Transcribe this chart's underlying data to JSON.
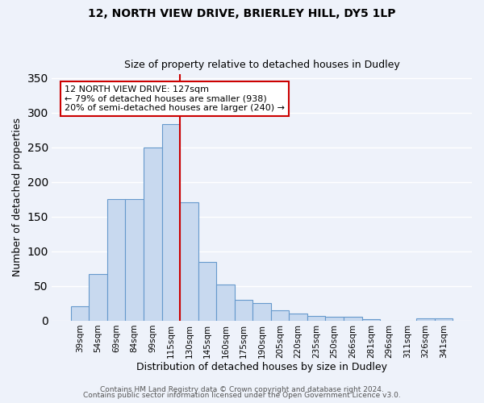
{
  "title": "12, NORTH VIEW DRIVE, BRIERLEY HILL, DY5 1LP",
  "subtitle": "Size of property relative to detached houses in Dudley",
  "xlabel": "Distribution of detached houses by size in Dudley",
  "ylabel": "Number of detached properties",
  "bar_color": "#c8d9ef",
  "bar_edge_color": "#6699cc",
  "background_color": "#eef2fa",
  "grid_color": "#ffffff",
  "categories": [
    "39sqm",
    "54sqm",
    "69sqm",
    "84sqm",
    "99sqm",
    "115sqm",
    "130sqm",
    "145sqm",
    "160sqm",
    "175sqm",
    "190sqm",
    "205sqm",
    "220sqm",
    "235sqm",
    "250sqm",
    "266sqm",
    "281sqm",
    "296sqm",
    "311sqm",
    "326sqm",
    "341sqm"
  ],
  "values": [
    20,
    67,
    175,
    175,
    250,
    283,
    170,
    85,
    52,
    30,
    25,
    15,
    10,
    7,
    5,
    5,
    2,
    0,
    0,
    3,
    3
  ],
  "vline_x_idx": 5.5,
  "vline_color": "#cc0000",
  "annotation_lines": [
    "12 NORTH VIEW DRIVE: 127sqm",
    "← 79% of detached houses are smaller (938)",
    "20% of semi-detached houses are larger (240) →"
  ],
  "annotation_box_facecolor": "#ffffff",
  "annotation_box_edgecolor": "#cc0000",
  "ylim": [
    0,
    355
  ],
  "yticks": [
    0,
    50,
    100,
    150,
    200,
    250,
    300,
    350
  ],
  "footer1": "Contains HM Land Registry data © Crown copyright and database right 2024.",
  "footer2": "Contains public sector information licensed under the Open Government Licence v3.0."
}
